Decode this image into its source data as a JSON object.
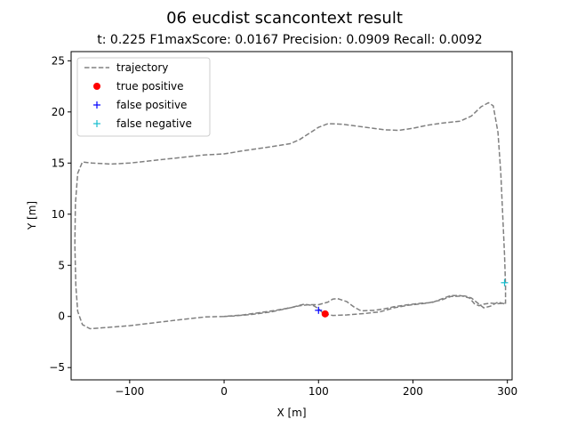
{
  "chart_data": {
    "type": "scatter",
    "title": "06 eucdist scancontext result",
    "subtitle": "t:  0.225  F1maxScore:  0.0167  Precision:  0.0909  Recall:  0.0092",
    "xlabel": "X [m]",
    "ylabel": "Y [m]",
    "xlim": [
      -162,
      305
    ],
    "ylim": [
      -6.2,
      25.9
    ],
    "xticks": [
      -100,
      0,
      100,
      200,
      300
    ],
    "xtick_labels": [
      "−100",
      "0",
      "100",
      "200",
      "300"
    ],
    "yticks": [
      -5,
      0,
      5,
      10,
      15,
      20,
      25
    ],
    "ytick_labels": [
      "−5",
      "0",
      "5",
      "10",
      "15",
      "20",
      "25"
    ],
    "grid": false,
    "legend_position": "top-left",
    "series": [
      {
        "name": "trajectory",
        "style": "dashed-line",
        "color": "#808080",
        "points": [
          [
            0,
            0
          ],
          [
            -20,
            -0.05
          ],
          [
            -50,
            -0.35
          ],
          [
            -100,
            -0.9
          ],
          [
            -120,
            -1.05
          ],
          [
            -142,
            -1.2
          ],
          [
            -150,
            -0.8
          ],
          [
            -155,
            0.5
          ],
          [
            -157,
            3
          ],
          [
            -158,
            7
          ],
          [
            -157.5,
            11
          ],
          [
            -155,
            14
          ],
          [
            -150,
            15.1
          ],
          [
            -140,
            15
          ],
          [
            -120,
            14.9
          ],
          [
            -100,
            15
          ],
          [
            -80,
            15.2
          ],
          [
            -60,
            15.4
          ],
          [
            -40,
            15.6
          ],
          [
            -20,
            15.8
          ],
          [
            0,
            15.9
          ],
          [
            20,
            16.2
          ],
          [
            50,
            16.6
          ],
          [
            70,
            16.9
          ],
          [
            80,
            17.3
          ],
          [
            90,
            17.9
          ],
          [
            100,
            18.5
          ],
          [
            110,
            18.85
          ],
          [
            125,
            18.8
          ],
          [
            150,
            18.5
          ],
          [
            170,
            18.25
          ],
          [
            185,
            18.2
          ],
          [
            200,
            18.4
          ],
          [
            215,
            18.7
          ],
          [
            230,
            18.9
          ],
          [
            250,
            19.1
          ],
          [
            262,
            19.6
          ],
          [
            272,
            20.5
          ],
          [
            280,
            20.9
          ],
          [
            285,
            20.6
          ],
          [
            290,
            18
          ],
          [
            293,
            14
          ],
          [
            295,
            10
          ],
          [
            297,
            6
          ],
          [
            298,
            3
          ],
          [
            298,
            1.3
          ],
          [
            290,
            1.25
          ],
          [
            282,
            1.3
          ],
          [
            275,
            1.2
          ],
          [
            270,
            1.05
          ],
          [
            265,
            1.25
          ],
          [
            260,
            1.8
          ],
          [
            250,
            2.05
          ],
          [
            240,
            2.05
          ],
          [
            230,
            1.7
          ],
          [
            220,
            1.35
          ],
          [
            210,
            1.3
          ],
          [
            195,
            1.15
          ],
          [
            180,
            0.95
          ],
          [
            170,
            0.75
          ],
          [
            160,
            0.6
          ],
          [
            145,
            0.55
          ],
          [
            138,
            0.9
          ],
          [
            130,
            1.45
          ],
          [
            120,
            1.75
          ],
          [
            115,
            1.7
          ],
          [
            110,
            1.4
          ],
          [
            100,
            1.15
          ],
          [
            90,
            1.15
          ],
          [
            80,
            1.05
          ],
          [
            70,
            0.85
          ],
          [
            55,
            0.6
          ],
          [
            40,
            0.4
          ],
          [
            20,
            0.15
          ],
          [
            0,
            0
          ],
          [
            10,
            0.05
          ],
          [
            30,
            0.2
          ],
          [
            50,
            0.45
          ],
          [
            70,
            0.85
          ],
          [
            85,
            1.2
          ],
          [
            95,
            1.05
          ],
          [
            100,
            0.75
          ],
          [
            105,
            0.3
          ],
          [
            115,
            0.1
          ],
          [
            130,
            0.15
          ],
          [
            150,
            0.3
          ],
          [
            165,
            0.45
          ],
          [
            180,
            0.85
          ],
          [
            195,
            1.1
          ],
          [
            215,
            1.3
          ],
          [
            230,
            1.6
          ],
          [
            240,
            1.95
          ],
          [
            255,
            2.0
          ],
          [
            262,
            1.8
          ],
          [
            270,
            1.2
          ],
          [
            275,
            0.85
          ],
          [
            282,
            1.0
          ],
          [
            290,
            1.4
          ],
          [
            298,
            1.2
          ]
        ]
      },
      {
        "name": "true positive",
        "style": "circle-marker",
        "color": "#ff0000",
        "points": [
          [
            107,
            0.25
          ]
        ]
      },
      {
        "name": "false positive",
        "style": "plus-marker",
        "color": "#0000ff",
        "points": [
          [
            100,
            0.6
          ]
        ]
      },
      {
        "name": "false negative",
        "style": "plus-marker",
        "color": "#17becf",
        "points": [
          [
            297,
            3.3
          ]
        ]
      }
    ]
  }
}
